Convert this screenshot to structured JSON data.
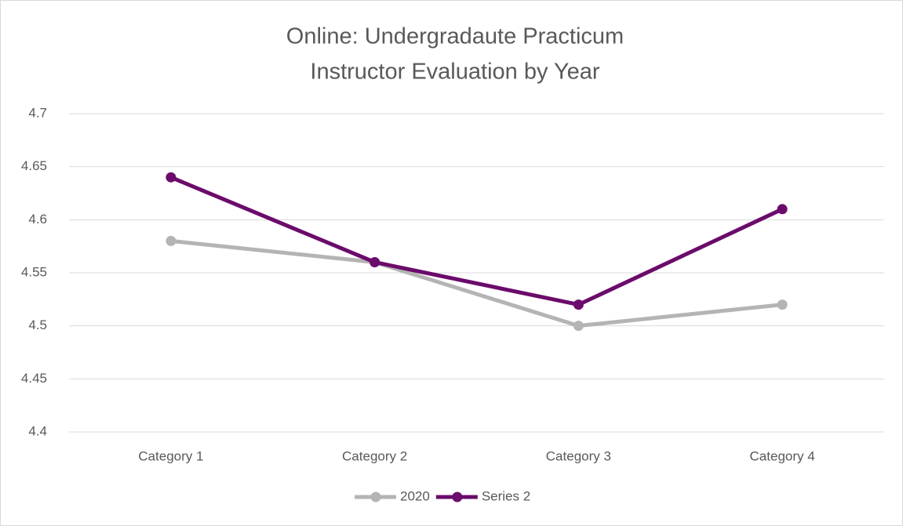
{
  "chart_data": {
    "type": "line",
    "title": [
      "Online: Undergradaute Practicum",
      "Instructor Evaluation by Year"
    ],
    "categories": [
      "Category 1",
      "Category 2",
      "Category 3",
      "Category 4"
    ],
    "series": [
      {
        "name": "2020",
        "color": "#b4b4b4",
        "values": [
          4.58,
          4.56,
          4.5,
          4.52
        ]
      },
      {
        "name": "Series 2",
        "color": "#6b0b6b",
        "values": [
          4.64,
          4.56,
          4.52,
          4.61
        ]
      }
    ],
    "ylim": [
      4.4,
      4.7
    ],
    "yticks": [
      4.4,
      4.45,
      4.5,
      4.55,
      4.6,
      4.65,
      4.7
    ],
    "grid": true,
    "legend": "bottom"
  }
}
